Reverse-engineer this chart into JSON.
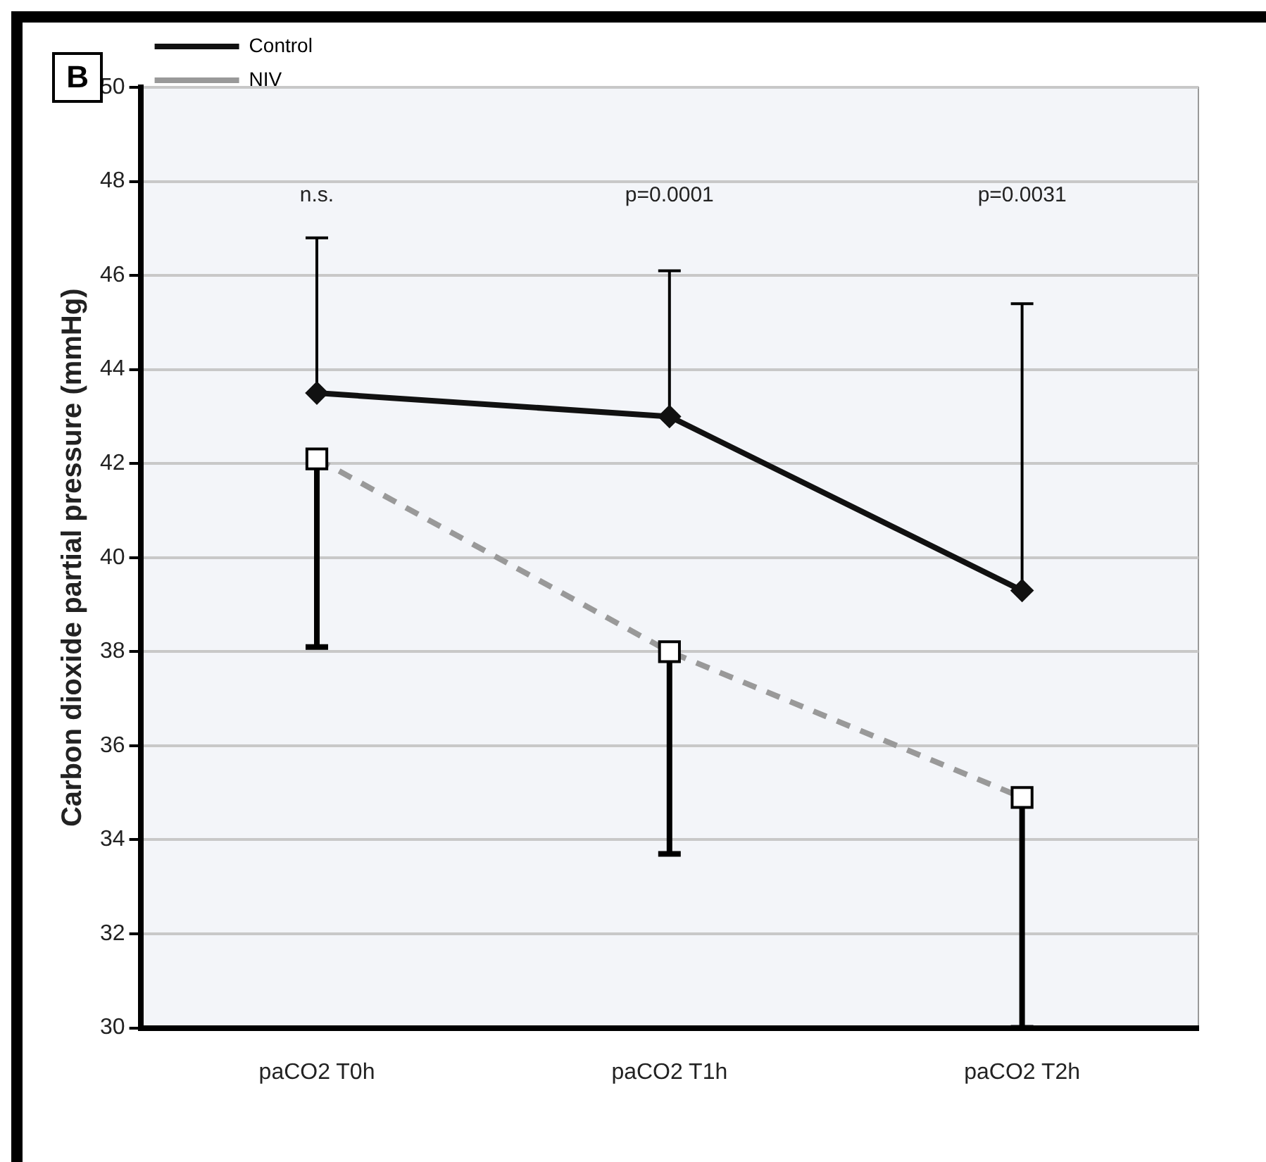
{
  "chart_data": {
    "type": "line",
    "ylabel": "Carbon dioxide partial pressure (mmHg)",
    "categories": [
      "paCO2 T0h",
      "paCO2 T1h",
      "paCO2 T2h"
    ],
    "series": [
      {
        "name": "Control",
        "color": "#111111",
        "marker": "diamond",
        "line_style": "solid",
        "values": [
          43.5,
          43.0,
          39.3
        ],
        "errors": [
          [
            43.5,
            46.8
          ],
          [
            43.0,
            46.1
          ],
          [
            39.3,
            45.4
          ]
        ]
      },
      {
        "name": "NIV",
        "color": "#999999",
        "marker": "square",
        "line_style": "dashed",
        "values": [
          42.1,
          38.0,
          34.9
        ],
        "errors": [
          [
            38.1,
            42.1
          ],
          [
            33.7,
            38.0
          ],
          [
            30,
            34.9
          ]
        ]
      }
    ],
    "ylim": [
      30,
      50
    ],
    "yticks": [
      30,
      32,
      34,
      36,
      38,
      40,
      42,
      44,
      46,
      48,
      50
    ],
    "grid": "y",
    "legend": "top left",
    "annotations": [
      "B",
      "n.s.",
      "p=0.0001",
      "p=0.0031"
    ]
  }
}
